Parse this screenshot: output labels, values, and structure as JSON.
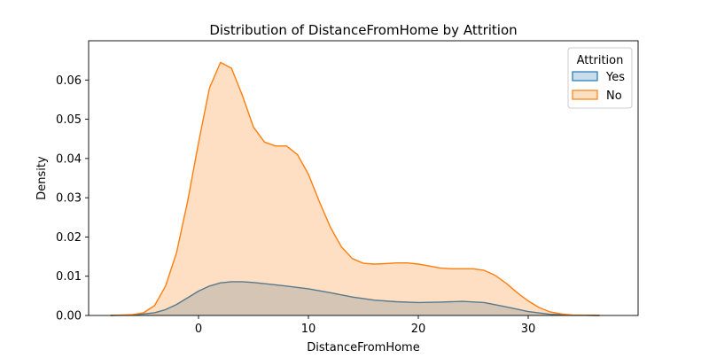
{
  "chart_data": {
    "type": "area",
    "title": "Distribution of DistanceFromHome by Attrition",
    "xlabel": "DistanceFromHome",
    "ylabel": "Density",
    "xlim": [
      -10,
      40
    ],
    "ylim": [
      0,
      0.07
    ],
    "xticks": [
      0,
      10,
      20,
      30
    ],
    "yticks": [
      0.0,
      0.01,
      0.02,
      0.03,
      0.04,
      0.05,
      0.06
    ],
    "ytick_labels": [
      "0.00",
      "0.01",
      "0.02",
      "0.03",
      "0.04",
      "0.05",
      "0.06"
    ],
    "grid": false,
    "legend": {
      "title": "Attrition",
      "position": "top-right"
    },
    "series": [
      {
        "name": "Yes",
        "color": "#1f77b4",
        "fill": "#1f77b4",
        "x": [
          -8,
          -6,
          -4,
          -3,
          -2,
          -1,
          0,
          1,
          2,
          3,
          4,
          5,
          6,
          8,
          10,
          12,
          14,
          16,
          18,
          20,
          22,
          24,
          26,
          28,
          30,
          32,
          34,
          36.5
        ],
        "y": [
          0,
          0.0001,
          0.0007,
          0.0015,
          0.0028,
          0.0045,
          0.0062,
          0.0075,
          0.0083,
          0.0086,
          0.0086,
          0.0084,
          0.0081,
          0.0075,
          0.0068,
          0.0058,
          0.0047,
          0.0039,
          0.0035,
          0.0033,
          0.0034,
          0.0036,
          0.0033,
          0.0022,
          0.001,
          0.0003,
          0.0001,
          0
        ]
      },
      {
        "name": "No",
        "color": "#ff7f0e",
        "fill": "#ff7f0e",
        "x": [
          -8,
          -6,
          -5,
          -4,
          -3,
          -2,
          -1,
          0,
          1,
          2,
          3,
          4,
          5,
          6,
          7,
          8,
          9,
          10,
          11,
          12,
          13,
          14,
          15,
          16,
          17,
          18,
          19,
          20,
          21,
          22,
          23,
          24,
          25,
          26,
          27,
          28,
          29,
          30,
          31,
          32,
          33,
          34,
          36.5
        ],
        "y": [
          0,
          0.0002,
          0.0007,
          0.0025,
          0.0075,
          0.016,
          0.029,
          0.044,
          0.058,
          0.0645,
          0.063,
          0.056,
          0.048,
          0.0442,
          0.0432,
          0.0432,
          0.041,
          0.036,
          0.029,
          0.0225,
          0.0175,
          0.0145,
          0.0133,
          0.0131,
          0.0132,
          0.0134,
          0.0134,
          0.0131,
          0.0126,
          0.0121,
          0.0119,
          0.0119,
          0.0119,
          0.0115,
          0.0102,
          0.0082,
          0.0058,
          0.0037,
          0.002,
          0.0009,
          0.0004,
          0.0001,
          0
        ]
      }
    ]
  }
}
